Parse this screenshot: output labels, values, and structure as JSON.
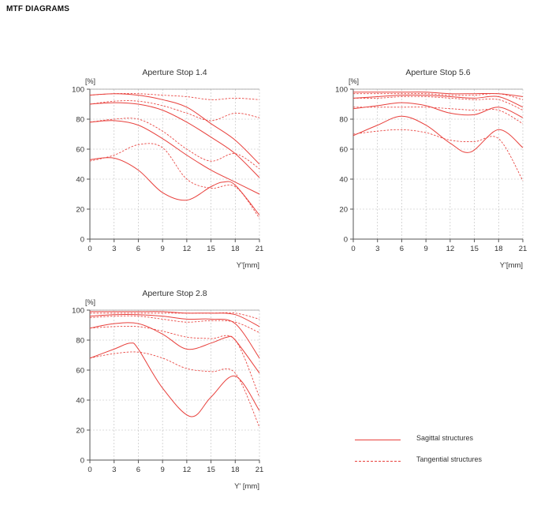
{
  "page": {
    "title": "MTF DIAGRAMS"
  },
  "legend": {
    "sagittal": "Sagittal structures",
    "tangential": "Tangential structures"
  },
  "colors": {
    "curve": "#e8403c",
    "grid": "#bdbdbd",
    "axis": "#555555"
  },
  "chart_data": [
    {
      "type": "line",
      "title": "Aperture Stop 1.4",
      "ylabel": "[%]",
      "xlabel": "Y'[mm]",
      "xlim": [
        0,
        21
      ],
      "ylim": [
        0,
        100
      ],
      "xticks": [
        0,
        3,
        6,
        9,
        12,
        15,
        18,
        21
      ],
      "yticks": [
        0,
        20,
        40,
        60,
        80,
        100
      ],
      "grid": true,
      "series": [
        {
          "style": "sagittal",
          "x": [
            0,
            3,
            6,
            9,
            12,
            15,
            18,
            21
          ],
          "y": [
            96,
            97,
            96,
            93,
            88,
            77,
            66,
            50
          ]
        },
        {
          "style": "tangential",
          "x": [
            0,
            3,
            6,
            9,
            12,
            15,
            18,
            21
          ],
          "y": [
            96,
            97,
            97,
            96,
            95,
            93,
            94,
            93
          ]
        },
        {
          "style": "sagittal",
          "x": [
            0,
            3,
            6,
            9,
            12,
            15,
            18,
            21
          ],
          "y": [
            90,
            91,
            90,
            86,
            78,
            68,
            57,
            41
          ]
        },
        {
          "style": "tangential",
          "x": [
            0,
            3,
            6,
            9,
            12,
            15,
            18,
            21
          ],
          "y": [
            90,
            92,
            92,
            89,
            84,
            79,
            84,
            81
          ]
        },
        {
          "style": "sagittal",
          "x": [
            0,
            3,
            6,
            9,
            12,
            15,
            18,
            21
          ],
          "y": [
            78,
            79,
            76,
            67,
            56,
            46,
            38,
            30
          ]
        },
        {
          "style": "tangential",
          "x": [
            0,
            3,
            6,
            9,
            12,
            15,
            18,
            21
          ],
          "y": [
            78,
            80,
            80,
            72,
            60,
            52,
            57,
            47
          ]
        },
        {
          "style": "sagittal",
          "x": [
            0,
            3,
            6,
            9,
            12,
            15,
            16.5,
            18,
            21
          ],
          "y": [
            53,
            54,
            46,
            31,
            26,
            35,
            38,
            36,
            16
          ]
        },
        {
          "style": "tangential",
          "x": [
            0,
            3,
            6,
            9,
            12,
            15,
            18,
            21
          ],
          "y": [
            52,
            56,
            63,
            61,
            40,
            34,
            35,
            14
          ]
        }
      ]
    },
    {
      "type": "line",
      "title": "Aperture Stop 5.6",
      "ylabel": "[%]",
      "xlabel": "Y'[mm]",
      "xlim": [
        0,
        21
      ],
      "ylim": [
        0,
        100
      ],
      "xticks": [
        0,
        3,
        6,
        9,
        12,
        15,
        18,
        21
      ],
      "yticks": [
        0,
        20,
        40,
        60,
        80,
        100
      ],
      "grid": true,
      "series": [
        {
          "style": "sagittal",
          "x": [
            0,
            3,
            6,
            9,
            12,
            15,
            18,
            21
          ],
          "y": [
            98,
            98,
            98,
            98,
            97,
            97,
            97,
            95
          ]
        },
        {
          "style": "tangential",
          "x": [
            0,
            3,
            6,
            9,
            12,
            15,
            18,
            21
          ],
          "y": [
            97,
            97,
            97,
            97,
            96,
            96,
            97,
            93
          ]
        },
        {
          "style": "sagittal",
          "x": [
            0,
            3,
            6,
            9,
            12,
            15,
            18,
            21
          ],
          "y": [
            94,
            95,
            96,
            96,
            95,
            94,
            95,
            88
          ]
        },
        {
          "style": "tangential",
          "x": [
            0,
            3,
            6,
            9,
            12,
            15,
            18,
            21
          ],
          "y": [
            94,
            94,
            95,
            95,
            94,
            93,
            93,
            86
          ]
        },
        {
          "style": "sagittal",
          "x": [
            0,
            3,
            6,
            9,
            12,
            15,
            18,
            21
          ],
          "y": [
            87,
            89,
            91,
            89,
            84,
            83,
            88,
            81
          ]
        },
        {
          "style": "tangential",
          "x": [
            0,
            3,
            6,
            9,
            12,
            15,
            18,
            21
          ],
          "y": [
            88,
            88,
            88,
            88,
            87,
            86,
            86,
            77
          ]
        },
        {
          "style": "sagittal",
          "x": [
            0,
            3,
            6,
            9,
            12,
            14.5,
            18,
            21
          ],
          "y": [
            69,
            76,
            82,
            76,
            64,
            58,
            73,
            61
          ]
        },
        {
          "style": "tangential",
          "x": [
            0,
            3,
            6,
            9,
            12,
            15,
            18,
            21
          ],
          "y": [
            70,
            72,
            73,
            71,
            66,
            65,
            67,
            39
          ]
        }
      ]
    },
    {
      "type": "line",
      "title": "Aperture Stop 2.8",
      "ylabel": "[%]",
      "xlabel": "Y' [mm]",
      "xlim": [
        0,
        21
      ],
      "ylim": [
        0,
        100
      ],
      "xticks": [
        0,
        3,
        6,
        9,
        12,
        15,
        18,
        21
      ],
      "yticks": [
        0,
        20,
        40,
        60,
        80,
        100
      ],
      "grid": true,
      "series": [
        {
          "style": "sagittal",
          "x": [
            0,
            3,
            6,
            9,
            12,
            15,
            18,
            21
          ],
          "y": [
            99,
            99,
            99,
            99,
            98,
            98,
            97,
            89
          ]
        },
        {
          "style": "tangential",
          "x": [
            0,
            3,
            6,
            9,
            12,
            15,
            18,
            21
          ],
          "y": [
            98,
            98,
            98,
            98,
            98,
            98,
            98,
            94
          ]
        },
        {
          "style": "sagittal",
          "x": [
            0,
            3,
            6,
            9,
            12,
            15,
            18,
            21
          ],
          "y": [
            96,
            97,
            97,
            96,
            94,
            94,
            91,
            68
          ]
        },
        {
          "style": "tangential",
          "x": [
            0,
            3,
            6,
            9,
            12,
            15,
            18,
            21
          ],
          "y": [
            95,
            96,
            96,
            94,
            92,
            93,
            92,
            85
          ]
        },
        {
          "style": "sagittal",
          "x": [
            0,
            3,
            6,
            9,
            12,
            15,
            17,
            18,
            21
          ],
          "y": [
            88,
            91,
            91,
            84,
            74,
            78,
            82,
            80,
            58
          ]
        },
        {
          "style": "tangential",
          "x": [
            0,
            3,
            6,
            9,
            12,
            15,
            18,
            21
          ],
          "y": [
            88,
            89,
            89,
            86,
            82,
            81,
            80,
            42
          ]
        },
        {
          "style": "sagittal",
          "x": [
            0,
            3,
            5,
            6,
            9,
            12.5,
            15,
            18,
            21
          ],
          "y": [
            68,
            74,
            78,
            74,
            48,
            29,
            42,
            56,
            33
          ]
        },
        {
          "style": "tangential",
          "x": [
            0,
            3,
            6,
            9,
            12,
            15,
            18,
            21
          ],
          "y": [
            68,
            71,
            72,
            68,
            61,
            59,
            58,
            22
          ]
        }
      ]
    }
  ]
}
